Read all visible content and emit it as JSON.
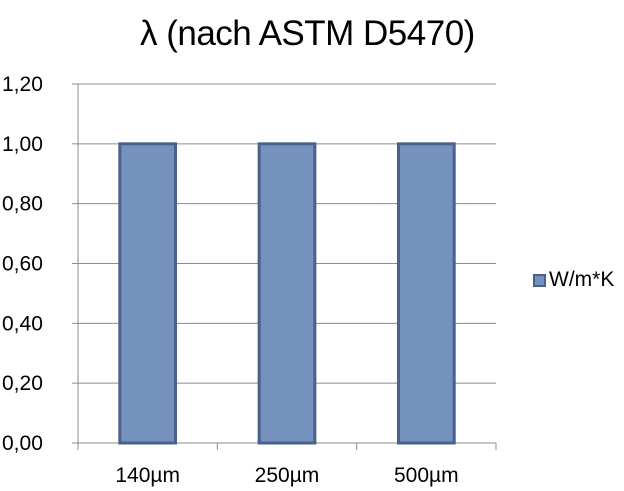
{
  "chart_data": {
    "type": "bar",
    "title": "λ (nach ASTM D5470)",
    "categories": [
      "140µm",
      "250µm",
      "500µm"
    ],
    "series": [
      {
        "name": "W/m*K",
        "values": [
          1.0,
          1.0,
          1.0
        ]
      }
    ],
    "xlabel": "",
    "ylabel": "",
    "ylim": [
      0,
      1.2
    ],
    "yticks": [
      "0,00",
      "0,20",
      "0,40",
      "0,60",
      "0,80",
      "1,00",
      "1,20"
    ],
    "grid": true,
    "legend_position": "right",
    "colors": {
      "bar_fill": "#7591bd",
      "bar_stroke": "#4a628a",
      "grid": "#8c8c8c",
      "axis": "#8c8c8c"
    }
  }
}
